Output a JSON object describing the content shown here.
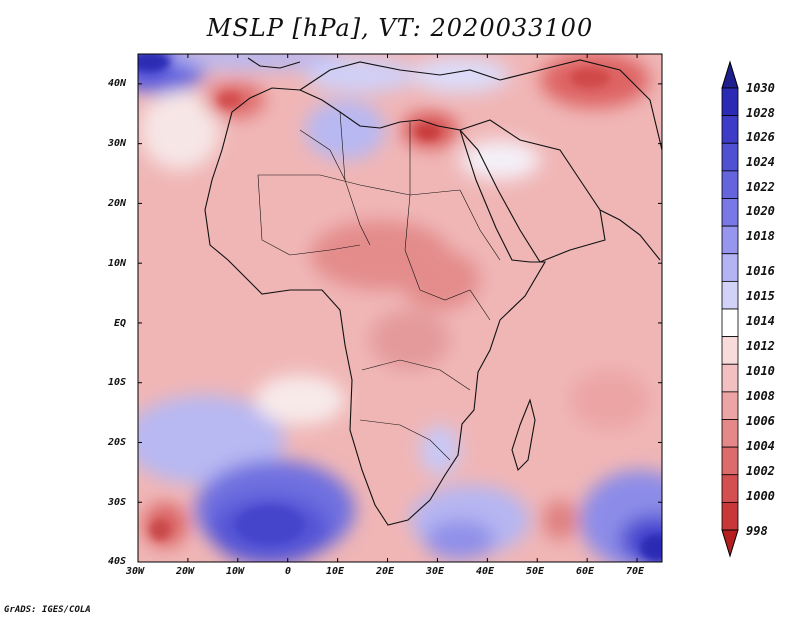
{
  "title": "MSLP [hPa], VT: 2020033100",
  "credit": "GrADS: IGES/COLA",
  "map": {
    "lat_labels": [
      "40N",
      "30N",
      "20N",
      "10N",
      "EQ",
      "10S",
      "20S",
      "30S",
      "40S"
    ],
    "lon_labels": [
      "30W",
      "20W",
      "10W",
      "0",
      "10E",
      "20E",
      "30E",
      "40E",
      "50E",
      "60E",
      "70E"
    ],
    "lon_range": [
      -30,
      75
    ],
    "lat_range": [
      -40,
      45
    ]
  },
  "colorbar": {
    "levels": [
      "1030",
      "1028",
      "1026",
      "1024",
      "1022",
      "1020",
      "1018",
      "1016",
      "1015",
      "1014",
      "1012",
      "1010",
      "1008",
      "1006",
      "1004",
      "1002",
      "1000",
      "998"
    ],
    "colors": [
      "#1e1e8c",
      "#2a2ab4",
      "#3c3cc8",
      "#5050d2",
      "#6464dc",
      "#7878e6",
      "#9696ee",
      "#b4b4f4",
      "#d2d2f8",
      "#ffffff",
      "#f8dcdc",
      "#f2c0c0",
      "#eca4a4",
      "#e48888",
      "#dc6c6c",
      "#d45050",
      "#c83838",
      "#b41e1e"
    ]
  }
}
